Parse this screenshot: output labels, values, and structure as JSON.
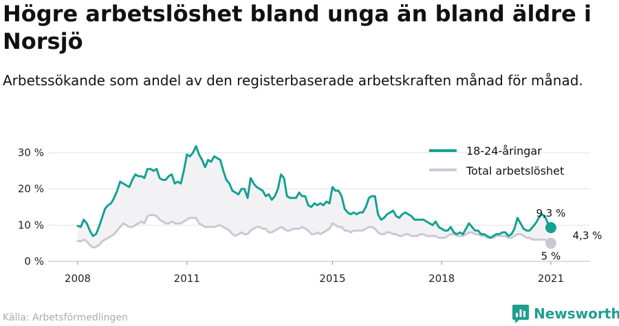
{
  "title": "Högre arbetslöshet bland unga än bland äldre i Norsjö",
  "subtitle": "Arbetssökande som andel av den registerbaserade arbetskraften månad för månad.",
  "source": "Källa: Arbetsförmedlingen",
  "brand": "Newsworthy",
  "colors": {
    "youth": "#12a192",
    "total": "#c9c9d4",
    "fill": "#f2f2f4",
    "brand": "#1f9e8e",
    "grid": "#e0e0e0"
  },
  "chart_data": {
    "type": "line",
    "x_start": "2008-01",
    "x_end": "2021-06",
    "xticks": [
      "2008",
      "2011",
      "2015",
      "2018",
      "2021"
    ],
    "ylim": [
      0,
      32
    ],
    "yticks": [
      "0 %",
      "10 %",
      "20 %",
      "30 %"
    ],
    "legend_position": "top-right",
    "series": [
      {
        "name": "18-24-åringar",
        "end_label": "9,3 %",
        "values": [
          9.8,
          9.5,
          11.5,
          10.5,
          8.5,
          7.0,
          7.5,
          9.5,
          12.0,
          14.5,
          15.5,
          16.0,
          17.5,
          19.5,
          22.0,
          21.5,
          21.0,
          20.5,
          22.5,
          24.0,
          23.5,
          23.5,
          23.0,
          25.5,
          25.5,
          25.0,
          25.5,
          23.0,
          22.5,
          22.5,
          23.5,
          24.0,
          21.5,
          22.0,
          21.5,
          25.0,
          29.5,
          29.0,
          30.0,
          31.8,
          29.5,
          28.0,
          26.0,
          28.0,
          27.5,
          29.0,
          28.5,
          28.0,
          25.0,
          22.5,
          21.5,
          19.5,
          19.0,
          18.5,
          20.0,
          20.0,
          17.5,
          23.0,
          21.5,
          20.5,
          20.0,
          19.5,
          18.0,
          18.5,
          17.0,
          18.0,
          20.0,
          24.0,
          23.0,
          18.0,
          17.5,
          17.5,
          17.5,
          19.0,
          18.0,
          18.0,
          15.5,
          15.0,
          16.0,
          15.5,
          16.0,
          15.5,
          16.5,
          16.0,
          20.5,
          19.5,
          19.5,
          18.0,
          14.5,
          13.5,
          13.0,
          13.5,
          13.0,
          13.5,
          13.5,
          15.0,
          17.5,
          18.0,
          18.0,
          13.0,
          11.5,
          12.0,
          13.0,
          13.5,
          14.0,
          12.5,
          12.0,
          13.0,
          13.5,
          13.0,
          12.5,
          11.5,
          11.5,
          11.5,
          11.5,
          11.0,
          10.5,
          10.0,
          11.0,
          9.5,
          9.0,
          8.5,
          8.5,
          9.5,
          8.0,
          7.5,
          8.0,
          7.5,
          9.0,
          10.5,
          9.5,
          8.5,
          8.5,
          7.5,
          7.5,
          7.0,
          6.5,
          7.0,
          7.5,
          7.5,
          8.0,
          8.0,
          7.0,
          7.5,
          9.0,
          12.0,
          10.5,
          9.0,
          8.5,
          8.5,
          9.5,
          10.5,
          12.0,
          13.0,
          12.5,
          10.5,
          9.3
        ]
      },
      {
        "name": "Total arbetslöshet",
        "end_label": "5 %",
        "values": [
          5.6,
          5.5,
          6.0,
          5.5,
          4.5,
          3.8,
          4.0,
          4.5,
          5.5,
          6.0,
          6.5,
          7.0,
          7.5,
          8.5,
          9.5,
          10.5,
          10.0,
          9.5,
          9.5,
          10.0,
          10.5,
          11.0,
          10.5,
          12.5,
          12.8,
          12.8,
          12.5,
          11.5,
          11.0,
          10.5,
          10.5,
          11.0,
          10.5,
          10.5,
          10.5,
          11.0,
          11.5,
          12.0,
          12.0,
          12.0,
          10.5,
          10.0,
          9.5,
          9.5,
          9.5,
          9.5,
          9.8,
          10.0,
          9.5,
          9.0,
          8.5,
          7.5,
          7.0,
          7.5,
          8.0,
          7.5,
          7.5,
          8.5,
          9.0,
          9.5,
          9.5,
          9.0,
          9.0,
          8.0,
          8.0,
          8.5,
          9.0,
          9.5,
          9.0,
          8.5,
          8.5,
          9.0,
          9.0,
          9.0,
          9.5,
          9.0,
          8.5,
          7.5,
          7.5,
          8.0,
          7.5,
          8.0,
          8.5,
          9.0,
          10.5,
          10.0,
          9.5,
          9.5,
          8.5,
          8.5,
          8.0,
          8.5,
          8.5,
          8.5,
          8.5,
          9.0,
          9.5,
          9.5,
          9.0,
          8.0,
          7.5,
          7.5,
          8.0,
          8.0,
          7.5,
          7.5,
          7.0,
          7.0,
          7.5,
          7.5,
          7.0,
          7.0,
          7.0,
          7.5,
          7.5,
          7.0,
          7.0,
          7.0,
          7.0,
          6.5,
          6.5,
          6.5,
          7.0,
          7.5,
          7.5,
          7.0,
          7.0,
          7.0,
          7.5,
          8.0,
          8.0,
          7.5,
          7.5,
          7.0,
          7.0,
          6.5,
          6.5,
          6.5,
          7.0,
          7.0,
          7.0,
          7.0,
          6.5,
          6.5,
          7.0,
          7.5,
          7.5,
          7.0,
          6.5,
          6.5,
          6.0,
          6.0,
          6.0,
          6.0,
          6.0,
          5.5,
          5.0
        ]
      }
    ],
    "annotations": [
      {
        "text": "4,3 %"
      }
    ]
  }
}
